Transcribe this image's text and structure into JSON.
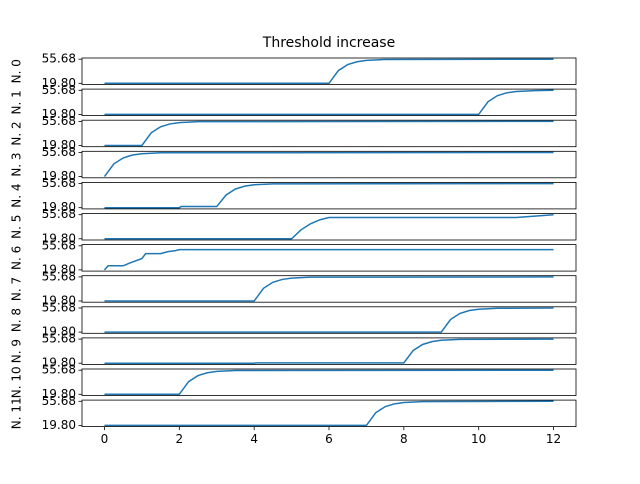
{
  "chart_data": {
    "type": "line",
    "title": "Threshold increase",
    "color": "#1f77b4",
    "xlim": [
      -0.6,
      12.6
    ],
    "xticks": [
      0,
      2,
      4,
      6,
      8,
      10,
      12
    ],
    "ylim": [
      18.006,
      57.474
    ],
    "yticks": [
      {
        "value": 19.8,
        "label": "19.80"
      },
      55.68
    ],
    "subplots": [
      {
        "ylabel": "N. 0",
        "x": [
          0,
          6,
          6.25,
          6.5,
          6.75,
          7,
          7.5,
          12
        ],
        "values": [
          19.8,
          19.8,
          38.74,
          47.68,
          51.9,
          53.9,
          55.29,
          55.68
        ]
      },
      {
        "ylabel": "N. 1",
        "x": [
          0,
          10,
          10.25,
          10.5,
          10.75,
          11,
          11.5,
          12
        ],
        "values": [
          19.8,
          19.8,
          38.74,
          47.68,
          51.9,
          53.9,
          55.29,
          55.68
        ]
      },
      {
        "ylabel": "N. 2",
        "x": [
          0,
          1,
          1.25,
          1.5,
          1.75,
          2,
          2.5,
          12
        ],
        "values": [
          19.8,
          19.8,
          38.74,
          47.68,
          51.9,
          53.9,
          55.29,
          55.68
        ]
      },
      {
        "ylabel": "N. 3",
        "x": [
          0,
          0.25,
          0.5,
          0.75,
          1,
          1.5,
          12
        ],
        "values": [
          19.8,
          38.74,
          47.68,
          51.9,
          53.9,
          55.29,
          55.68
        ]
      },
      {
        "ylabel": "N. 4",
        "x": [
          0,
          2,
          2.05,
          3,
          3.25,
          3.5,
          3.75,
          4,
          4.5,
          12
        ],
        "values": [
          19.8,
          19.8,
          21.5,
          21.5,
          38.74,
          47.68,
          51.9,
          53.9,
          55.29,
          55.68
        ]
      },
      {
        "ylabel": "N. 5",
        "x": [
          0,
          5,
          5.25,
          5.5,
          5.75,
          6,
          11,
          12
        ],
        "values": [
          19.8,
          19.8,
          33,
          42,
          48,
          51.5,
          51.5,
          55.68
        ]
      },
      {
        "ylabel": "N. 6",
        "x": [
          0,
          0.1,
          0.5,
          0.7,
          1,
          1.1,
          1.5,
          1.7,
          1.9,
          2,
          12
        ],
        "values": [
          19.8,
          25.9,
          25.9,
          30.5,
          36.6,
          44,
          44,
          47,
          48.5,
          50,
          50
        ]
      },
      {
        "ylabel": "N. 7",
        "x": [
          0,
          4,
          4.25,
          4.5,
          4.75,
          5,
          5.5,
          12
        ],
        "values": [
          19.8,
          19.8,
          38.74,
          47.68,
          51.9,
          53.9,
          55.29,
          55.68
        ]
      },
      {
        "ylabel": "N. 8",
        "x": [
          0,
          9,
          9.25,
          9.5,
          9.75,
          10,
          10.5,
          12
        ],
        "values": [
          19.8,
          19.8,
          38.74,
          47.68,
          51.9,
          53.9,
          55.29,
          55.68
        ]
      },
      {
        "ylabel": "N. 9",
        "x": [
          0,
          4,
          4.05,
          8,
          8.25,
          8.5,
          8.75,
          9,
          9.5,
          12
        ],
        "values": [
          19.8,
          19.8,
          20.3,
          20.3,
          38.74,
          47.68,
          51.9,
          53.9,
          55.29,
          55.68
        ]
      },
      {
        "ylabel": "N. 10",
        "x": [
          0,
          2,
          2.25,
          2.5,
          2.75,
          3,
          3.5,
          12
        ],
        "values": [
          19.8,
          19.8,
          38.74,
          47.68,
          51.9,
          53.9,
          55.29,
          55.68
        ]
      },
      {
        "ylabel": "N. 11",
        "x": [
          0,
          7,
          7.25,
          7.5,
          7.75,
          8,
          8.5,
          12
        ],
        "values": [
          19.8,
          19.8,
          38.74,
          47.68,
          51.9,
          53.9,
          55.29,
          55.68
        ]
      }
    ]
  }
}
